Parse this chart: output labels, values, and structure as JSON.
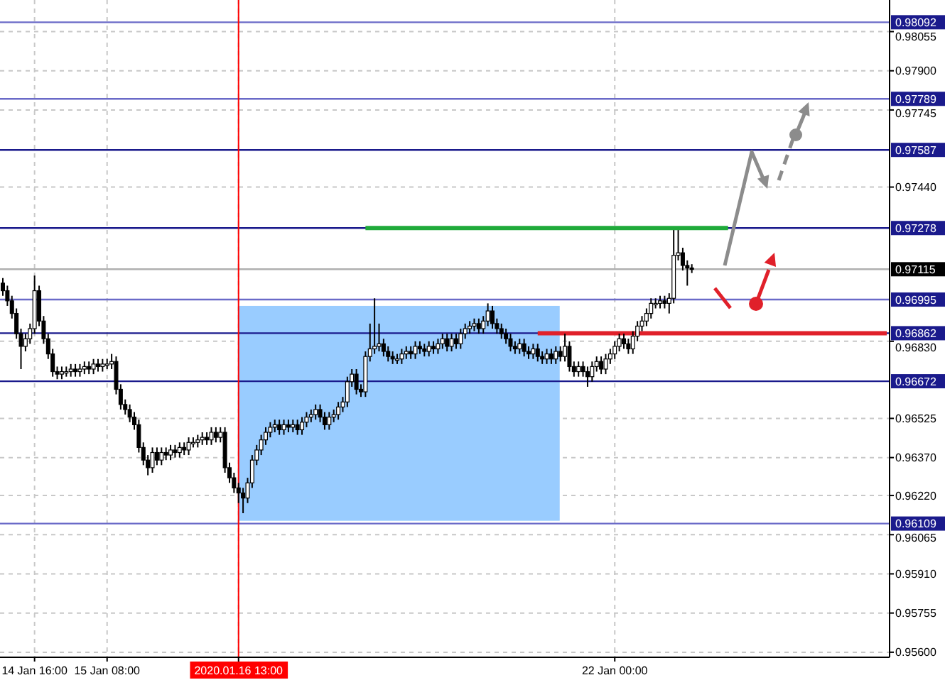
{
  "chart_data": {
    "type": "candlestick",
    "categories": [
      null,
      null,
      null,
      null,
      null,
      null,
      null,
      "14 Jan 16:00",
      null,
      null,
      null,
      null,
      null,
      null,
      null,
      null,
      null,
      null,
      null,
      null,
      null,
      null,
      null,
      "15 Jan 08:00",
      null,
      null,
      null,
      null,
      null,
      null,
      null,
      null,
      null,
      null,
      null,
      null,
      null,
      null,
      null,
      null,
      null,
      null,
      null,
      null,
      null,
      null,
      null,
      null,
      null,
      null,
      null,
      null,
      "2020.01.16 13:00",
      null,
      null,
      null,
      null,
      null,
      null,
      null,
      null,
      null,
      null,
      null,
      null,
      null,
      null,
      null,
      null,
      null,
      null,
      null,
      null,
      null,
      null,
      null,
      null,
      null,
      null,
      null,
      null,
      null,
      null,
      null,
      null,
      null,
      null,
      null,
      null,
      null,
      null,
      null,
      null,
      null,
      null,
      null,
      null,
      null,
      null,
      null,
      null,
      null,
      null,
      null,
      null,
      null,
      null,
      null,
      null,
      null,
      null,
      null,
      null,
      null,
      null,
      null,
      null,
      null,
      null,
      null,
      null,
      null,
      null,
      null,
      null,
      null,
      null,
      null,
      null,
      null,
      null,
      null,
      null,
      null,
      null,
      "22 Jan 00:00",
      null,
      null,
      null,
      null,
      null,
      null,
      null,
      null,
      null,
      null,
      null,
      null,
      null,
      null,
      null,
      null,
      null,
      null,
      null,
      null,
      null,
      null,
      null,
      null,
      null,
      null,
      null,
      null,
      null,
      null,
      null,
      null,
      null,
      null,
      null,
      null,
      null,
      null,
      null,
      null,
      null,
      null,
      null,
      null,
      null,
      null,
      null,
      null,
      null,
      null,
      null,
      null,
      null,
      null,
      null,
      null,
      null,
      null,
      null,
      null
    ],
    "ohlc": [
      [
        0.9706,
        0.9708,
        0.9701,
        0.9703
      ],
      [
        0.9703,
        0.9705,
        0.9697,
        0.9699
      ],
      [
        0.9699,
        0.9701,
        0.9692,
        0.9694
      ],
      [
        0.9694,
        0.9696,
        0.9684,
        0.9686
      ],
      [
        0.9686,
        0.9688,
        0.9672,
        0.9681
      ],
      [
        0.9681,
        0.9686,
        0.9679,
        0.9684
      ],
      [
        0.9684,
        0.969,
        0.9682,
        0.9688
      ],
      [
        0.9688,
        0.9709,
        0.9686,
        0.9703
      ],
      [
        0.9703,
        0.9705,
        0.9689,
        0.9691
      ],
      [
        0.9691,
        0.9693,
        0.9682,
        0.9684
      ],
      [
        0.9684,
        0.9686,
        0.9676,
        0.9678
      ],
      [
        0.9678,
        0.968,
        0.9669,
        0.9671
      ],
      [
        0.9671,
        0.9673,
        0.9668,
        0.967
      ],
      [
        0.967,
        0.9673,
        0.9668,
        0.9671
      ],
      [
        0.9671,
        0.9673,
        0.9669,
        0.9671
      ],
      [
        0.9671,
        0.9674,
        0.9669,
        0.9672
      ],
      [
        0.9672,
        0.9674,
        0.9669,
        0.9671
      ],
      [
        0.9671,
        0.9674,
        0.9669,
        0.9672
      ],
      [
        0.9672,
        0.9675,
        0.967,
        0.9673
      ],
      [
        0.9673,
        0.9675,
        0.967,
        0.9672
      ],
      [
        0.9672,
        0.9676,
        0.967,
        0.9674
      ],
      [
        0.9674,
        0.9676,
        0.9671,
        0.9673
      ],
      [
        0.9673,
        0.9676,
        0.9671,
        0.9674
      ],
      [
        0.9674,
        0.9676,
        0.9672,
        0.9674
      ],
      [
        0.9674,
        0.9678,
        0.9672,
        0.9675
      ],
      [
        0.9675,
        0.9677,
        0.9662,
        0.9664
      ],
      [
        0.9664,
        0.9666,
        0.9656,
        0.9658
      ],
      [
        0.9658,
        0.966,
        0.9654,
        0.9656
      ],
      [
        0.9656,
        0.9658,
        0.9651,
        0.9653
      ],
      [
        0.9653,
        0.9655,
        0.9648,
        0.965
      ],
      [
        0.965,
        0.9652,
        0.9639,
        0.9641
      ],
      [
        0.9641,
        0.9643,
        0.9634,
        0.9636
      ],
      [
        0.9636,
        0.9638,
        0.963,
        0.9633
      ],
      [
        0.9633,
        0.9641,
        0.9631,
        0.9639
      ],
      [
        0.9639,
        0.9641,
        0.9634,
        0.9636
      ],
      [
        0.9636,
        0.9641,
        0.9634,
        0.9639
      ],
      [
        0.9639,
        0.9641,
        0.9636,
        0.9638
      ],
      [
        0.9638,
        0.9642,
        0.9636,
        0.964
      ],
      [
        0.964,
        0.9642,
        0.9637,
        0.9639
      ],
      [
        0.9639,
        0.9643,
        0.9637,
        0.9641
      ],
      [
        0.9641,
        0.9643,
        0.9638,
        0.964
      ],
      [
        0.964,
        0.9645,
        0.9638,
        0.9643
      ],
      [
        0.9643,
        0.9645,
        0.9641,
        0.9643
      ],
      [
        0.9643,
        0.9646,
        0.9641,
        0.9644
      ],
      [
        0.9644,
        0.9647,
        0.9642,
        0.9645
      ],
      [
        0.9645,
        0.9647,
        0.9642,
        0.9644
      ],
      [
        0.9644,
        0.9649,
        0.9642,
        0.9647
      ],
      [
        0.9647,
        0.9649,
        0.9643,
        0.9645
      ],
      [
        0.9645,
        0.9649,
        0.9643,
        0.9647
      ],
      [
        0.9647,
        0.9649,
        0.9631,
        0.9633
      ],
      [
        0.9633,
        0.9635,
        0.9627,
        0.9629
      ],
      [
        0.9629,
        0.9631,
        0.9623,
        0.9625
      ],
      [
        0.9625,
        0.9627,
        0.9619,
        0.9623
      ],
      [
        0.9623,
        0.9625,
        0.9615,
        0.9621
      ],
      [
        0.9621,
        0.9629,
        0.9619,
        0.9627
      ],
      [
        0.9627,
        0.9638,
        0.9625,
        0.9636
      ],
      [
        0.9636,
        0.9642,
        0.9634,
        0.964
      ],
      [
        0.964,
        0.9646,
        0.9638,
        0.9644
      ],
      [
        0.9644,
        0.9649,
        0.9642,
        0.9647
      ],
      [
        0.9647,
        0.9651,
        0.9645,
        0.9649
      ],
      [
        0.9649,
        0.9652,
        0.9647,
        0.965
      ],
      [
        0.965,
        0.9652,
        0.9646,
        0.9648
      ],
      [
        0.9648,
        0.9652,
        0.9646,
        0.965
      ],
      [
        0.965,
        0.9652,
        0.9647,
        0.9649
      ],
      [
        0.9649,
        0.9652,
        0.9647,
        0.965
      ],
      [
        0.965,
        0.9652,
        0.9646,
        0.9648
      ],
      [
        0.9648,
        0.9653,
        0.9646,
        0.9651
      ],
      [
        0.9651,
        0.9655,
        0.9649,
        0.9653
      ],
      [
        0.9653,
        0.9656,
        0.9651,
        0.9654
      ],
      [
        0.9654,
        0.9658,
        0.9652,
        0.9656
      ],
      [
        0.9656,
        0.9658,
        0.9651,
        0.9653
      ],
      [
        0.9653,
        0.9655,
        0.9648,
        0.965
      ],
      [
        0.965,
        0.9655,
        0.9648,
        0.9653
      ],
      [
        0.9653,
        0.9656,
        0.9651,
        0.9654
      ],
      [
        0.9654,
        0.9659,
        0.9652,
        0.9657
      ],
      [
        0.9657,
        0.9661,
        0.9655,
        0.9659
      ],
      [
        0.9659,
        0.9669,
        0.9657,
        0.9667
      ],
      [
        0.9667,
        0.9672,
        0.9665,
        0.967
      ],
      [
        0.967,
        0.9672,
        0.9662,
        0.9664
      ],
      [
        0.9664,
        0.9666,
        0.9661,
        0.9663
      ],
      [
        0.9663,
        0.9679,
        0.9661,
        0.9677
      ],
      [
        0.9677,
        0.969,
        0.9675,
        0.968
      ],
      [
        0.968,
        0.97,
        0.9678,
        0.9681
      ],
      [
        0.9681,
        0.969,
        0.9679,
        0.9682
      ],
      [
        0.9682,
        0.9684,
        0.9677,
        0.9679
      ],
      [
        0.9679,
        0.9681,
        0.9675,
        0.9677
      ],
      [
        0.9677,
        0.9679,
        0.9674,
        0.9676
      ],
      [
        0.9676,
        0.9678,
        0.9674,
        0.9676
      ],
      [
        0.9676,
        0.968,
        0.9674,
        0.9678
      ],
      [
        0.9678,
        0.9681,
        0.9676,
        0.9679
      ],
      [
        0.9679,
        0.9681,
        0.9676,
        0.9678
      ],
      [
        0.9678,
        0.9683,
        0.9676,
        0.9681
      ],
      [
        0.9681,
        0.9683,
        0.9678,
        0.968
      ],
      [
        0.968,
        0.9682,
        0.9677,
        0.9679
      ],
      [
        0.9679,
        0.9683,
        0.9677,
        0.9681
      ],
      [
        0.9681,
        0.9683,
        0.9678,
        0.968
      ],
      [
        0.968,
        0.9684,
        0.9678,
        0.9682
      ],
      [
        0.9682,
        0.9686,
        0.968,
        0.9684
      ],
      [
        0.9684,
        0.9686,
        0.9679,
        0.9681
      ],
      [
        0.9681,
        0.9686,
        0.9679,
        0.9684
      ],
      [
        0.9684,
        0.9686,
        0.968,
        0.9682
      ],
      [
        0.9682,
        0.9688,
        0.968,
        0.9686
      ],
      [
        0.9686,
        0.969,
        0.9684,
        0.9688
      ],
      [
        0.9688,
        0.9691,
        0.9686,
        0.9689
      ],
      [
        0.9689,
        0.9692,
        0.9687,
        0.969
      ],
      [
        0.969,
        0.9692,
        0.9686,
        0.9688
      ],
      [
        0.9688,
        0.9693,
        0.9686,
        0.9691
      ],
      [
        0.9691,
        0.9698,
        0.9689,
        0.9695
      ],
      [
        0.9695,
        0.9697,
        0.9688,
        0.969
      ],
      [
        0.969,
        0.9692,
        0.9686,
        0.9688
      ],
      [
        0.9688,
        0.969,
        0.9684,
        0.9686
      ],
      [
        0.9686,
        0.9688,
        0.9682,
        0.9684
      ],
      [
        0.9684,
        0.9686,
        0.9679,
        0.9681
      ],
      [
        0.9681,
        0.9683,
        0.9678,
        0.968
      ],
      [
        0.968,
        0.9684,
        0.9678,
        0.9682
      ],
      [
        0.9682,
        0.9684,
        0.9677,
        0.9679
      ],
      [
        0.9679,
        0.9681,
        0.9676,
        0.9678
      ],
      [
        0.9678,
        0.9682,
        0.9676,
        0.968
      ],
      [
        0.968,
        0.9682,
        0.9675,
        0.9677
      ],
      [
        0.9677,
        0.9679,
        0.9674,
        0.9676
      ],
      [
        0.9676,
        0.968,
        0.9674,
        0.9678
      ],
      [
        0.9678,
        0.968,
        0.9674,
        0.9676
      ],
      [
        0.9676,
        0.9681,
        0.9674,
        0.9679
      ],
      [
        0.9679,
        0.9681,
        0.9675,
        0.9677
      ],
      [
        0.9677,
        0.9686,
        0.9675,
        0.9681
      ],
      [
        0.9681,
        0.9683,
        0.9671,
        0.9673
      ],
      [
        0.9673,
        0.9675,
        0.9669,
        0.9671
      ],
      [
        0.9671,
        0.9675,
        0.9669,
        0.9673
      ],
      [
        0.9673,
        0.9675,
        0.9669,
        0.9671
      ],
      [
        0.9671,
        0.9673,
        0.9665,
        0.9669
      ],
      [
        0.9669,
        0.9675,
        0.9667,
        0.9673
      ],
      [
        0.9673,
        0.9677,
        0.9671,
        0.9675
      ],
      [
        0.9675,
        0.9677,
        0.967,
        0.9672
      ],
      [
        0.9672,
        0.9678,
        0.967,
        0.9676
      ],
      [
        0.9676,
        0.968,
        0.9674,
        0.9678
      ],
      [
        0.9678,
        0.9683,
        0.9676,
        0.9681
      ],
      [
        0.9681,
        0.9686,
        0.9679,
        0.9684
      ],
      [
        0.9684,
        0.9686,
        0.968,
        0.9682
      ],
      [
        0.9682,
        0.9684,
        0.9678,
        0.968
      ],
      [
        0.968,
        0.9687,
        0.9678,
        0.9685
      ],
      [
        0.9685,
        0.9691,
        0.9683,
        0.9689
      ],
      [
        0.9689,
        0.9693,
        0.9687,
        0.9691
      ],
      [
        0.9691,
        0.9696,
        0.9689,
        0.9694
      ],
      [
        0.9694,
        0.97,
        0.9692,
        0.9698
      ],
      [
        0.9698,
        0.97,
        0.9696,
        0.9698
      ],
      [
        0.9698,
        0.9701,
        0.9696,
        0.9699
      ],
      [
        0.9699,
        0.9701,
        0.9696,
        0.9698
      ],
      [
        0.9698,
        0.9702,
        0.9694,
        0.97
      ],
      [
        0.97,
        0.9727,
        0.9698,
        0.9717
      ],
      [
        0.9717,
        0.9727,
        0.9715,
        0.9718
      ],
      [
        0.9718,
        0.972,
        0.9711,
        0.9713
      ],
      [
        0.9713,
        0.9715,
        0.9705,
        0.9712
      ],
      [
        0.9712,
        0.97135,
        0.971,
        0.97115
      ],
      null,
      null,
      null,
      null,
      null,
      null,
      null,
      null,
      null,
      null,
      null,
      null,
      null,
      null,
      null,
      null,
      null,
      null,
      null,
      null,
      null,
      null,
      null,
      null,
      null,
      null,
      null,
      null,
      null,
      null,
      null,
      null,
      null,
      null,
      null,
      null,
      null,
      null,
      null,
      null,
      null,
      null,
      null
    ],
    "series": [
      {
        "type": "line",
        "color": "#1faa3a",
        "values": [
          null,
          null,
          null,
          null,
          null,
          null,
          null,
          null,
          null,
          null,
          null,
          null,
          null,
          null,
          null,
          null,
          null,
          null,
          null,
          null,
          null,
          null,
          null,
          null,
          null,
          null,
          null,
          null,
          null,
          null,
          null,
          null,
          null,
          null,
          null,
          null,
          null,
          null,
          null,
          null,
          null,
          null,
          null,
          null,
          null,
          null,
          null,
          null,
          null,
          null,
          null,
          null,
          null,
          null,
          null,
          null,
          null,
          null,
          null,
          null,
          null,
          null,
          null,
          null,
          null,
          null,
          null,
          null,
          null,
          null,
          null,
          null,
          null,
          null,
          null,
          null,
          null,
          null,
          null,
          null,
          0.97278,
          0.97278,
          0.97278,
          0.97278,
          0.97278,
          0.97278,
          0.97278,
          0.97278,
          0.97278,
          0.97278,
          0.97278,
          0.97278,
          0.97278,
          0.97278,
          0.97278,
          0.97278,
          0.97278,
          0.97278,
          0.97278,
          0.97278,
          0.97278,
          0.97278,
          0.97278,
          0.97278,
          0.97278,
          0.97278,
          0.97278,
          0.97278,
          0.97278,
          0.97278,
          0.97278,
          0.97278,
          0.97278,
          0.97278,
          0.97278,
          0.97278,
          0.97278,
          0.97278,
          0.97278,
          0.97278,
          0.97278,
          0.97278,
          0.97278,
          0.97278,
          0.97278,
          0.97278,
          0.97278,
          0.97278,
          0.97278,
          0.97278,
          0.97278,
          0.97278,
          0.97278,
          0.97278,
          0.97278,
          0.97278,
          0.97278,
          0.97278,
          0.97278,
          0.97278,
          0.97278,
          0.97278,
          0.97278,
          0.97278,
          0.97278,
          0.97278,
          0.97278,
          0.97278,
          0.97278,
          0.97278,
          0.97278,
          0.97278,
          0.97278,
          0.97278,
          0.97278,
          0.97278,
          0.97278,
          0.97278,
          0.97278,
          0.97278,
          0.97278,
          null,
          null,
          null,
          null,
          null,
          null,
          null,
          null,
          null,
          null,
          null,
          null,
          null,
          null,
          null,
          null,
          null,
          null,
          null,
          null,
          null,
          null,
          null,
          null,
          null,
          null,
          null,
          null,
          null,
          null,
          null,
          null,
          null,
          null,
          null
        ]
      },
      {
        "type": "line",
        "color": "#e0202a",
        "values": [
          null,
          null,
          null,
          null,
          null,
          null,
          null,
          null,
          null,
          null,
          null,
          null,
          null,
          null,
          null,
          null,
          null,
          null,
          null,
          null,
          null,
          null,
          null,
          null,
          null,
          null,
          null,
          null,
          null,
          null,
          null,
          null,
          null,
          null,
          null,
          null,
          null,
          null,
          null,
          null,
          null,
          null,
          null,
          null,
          null,
          null,
          null,
          null,
          null,
          null,
          null,
          null,
          null,
          null,
          null,
          null,
          null,
          null,
          null,
          null,
          null,
          null,
          null,
          null,
          null,
          null,
          null,
          null,
          null,
          null,
          null,
          null,
          null,
          null,
          null,
          null,
          null,
          null,
          null,
          null,
          null,
          null,
          null,
          null,
          null,
          null,
          null,
          null,
          null,
          null,
          null,
          null,
          null,
          null,
          null,
          null,
          null,
          null,
          null,
          null,
          null,
          null,
          null,
          null,
          null,
          null,
          null,
          null,
          null,
          null,
          null,
          null,
          null,
          null,
          null,
          null,
          null,
          null,
          0.96862,
          0.96862,
          0.96862,
          0.96862,
          0.96862,
          0.96862,
          0.96862,
          0.96862,
          0.96862,
          0.96862,
          0.96862,
          0.96862,
          0.96862,
          0.96862,
          0.96862,
          0.96862,
          0.96862,
          0.96862,
          0.96862,
          0.96862,
          0.96862,
          0.96862,
          0.96862,
          0.96862,
          0.96862,
          0.96862,
          0.96862,
          0.96862,
          0.96862,
          0.96862,
          0.96862,
          0.96862,
          0.96862,
          0.96862,
          0.96862,
          0.96862,
          0.96862,
          0.96862,
          0.96862,
          0.96862,
          0.96862,
          0.96862,
          0.96862,
          0.96862,
          0.96862,
          0.96862,
          0.96862,
          0.96862,
          0.96862,
          0.96862,
          0.96862,
          0.96862,
          0.96862,
          0.96862,
          0.96862,
          0.96862,
          0.96862,
          0.96862,
          0.96862,
          0.96862,
          0.96862,
          0.96862,
          0.96862,
          0.96862,
          0.96862,
          0.96862,
          0.96862,
          0.96862,
          0.96862,
          0.96862,
          0.96862,
          0.96862,
          0.96862,
          0.96862,
          0.96862,
          0.96862,
          0.96862,
          0.96862
        ]
      }
    ],
    "ylim": [
      0.9558,
      0.9818
    ],
    "yticks": [
      0.98055,
      {
        "value": 0.979,
        "label": "0.97900"
      },
      0.97745,
      {
        "value": 0.9744,
        "label": "0.97440"
      },
      {
        "value": 0.9683,
        "label": "0.96830"
      },
      0.96525,
      {
        "value": 0.9637,
        "label": "0.96370"
      },
      {
        "value": 0.9622,
        "label": "0.96220"
      },
      0.96065,
      {
        "value": 0.9591,
        "label": "0.95910"
      },
      0.95755,
      {
        "value": 0.956,
        "label": "0.95600"
      }
    ],
    "ref_lines": [
      {
        "axis": "y",
        "value": 0.98092,
        "label": "0.98092",
        "color": "#6a6ac8"
      },
      {
        "axis": "y",
        "value": 0.97789,
        "label": "0.97789",
        "color": "#6a6ac8"
      },
      {
        "axis": "y",
        "value": 0.97587,
        "label": "0.97587",
        "color": "#1a1a8c"
      },
      {
        "axis": "y",
        "value": 0.97278,
        "label": "0.97278",
        "color": "#1a1a8c"
      },
      {
        "axis": "y",
        "value": 0.97115,
        "label": "0.97115",
        "color": "#b0b0b0"
      },
      {
        "axis": "y",
        "value": 0.96995,
        "label": "0.96995",
        "color": "#6a6ac8"
      },
      {
        "axis": "y",
        "value": 0.96862,
        "label": "0.96862",
        "color": "#1a1a8c"
      },
      {
        "axis": "y",
        "value": 0.96672,
        "label": "0.96672",
        "color": "#1a1a8c"
      },
      {
        "axis": "y",
        "value": 0.96109,
        "label": "0.96109",
        "color": "#6a6ac8"
      },
      {
        "axis": "x",
        "value": "2020.01.16 13:00",
        "color": "#ff0000"
      }
    ],
    "bands": [
      {
        "axis": "y",
        "from": 0.9612,
        "to": 0.9697,
        "color": "#99ccff"
      }
    ],
    "grid": true
  }
}
